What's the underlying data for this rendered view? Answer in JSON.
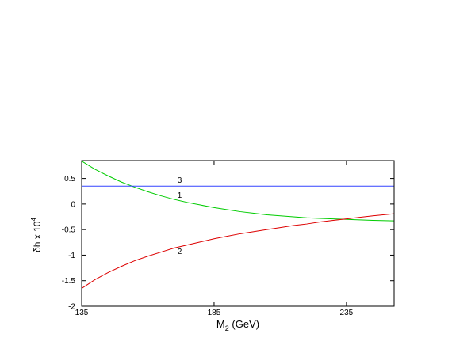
{
  "chart_data": {
    "type": "line",
    "title": "",
    "xlabel": {
      "main": "M",
      "sub": "2",
      "rest": " (GeV)"
    },
    "ylabel": {
      "main": "δh x 10",
      "sup": "4"
    },
    "xlim": [
      135,
      253
    ],
    "ylim": [
      -2,
      0.85
    ],
    "xticks": [
      135,
      185,
      235
    ],
    "yticks": [
      0.5,
      0,
      -0.5,
      -1,
      -1.5,
      -2
    ],
    "ytick_labels": [
      "0.5",
      "0",
      "-0.5",
      "-1",
      "-1.5",
      "-2"
    ],
    "grid": false,
    "series": [
      {
        "name": "1",
        "color": "#00cc00",
        "label_at": [
          172,
          0.12
        ],
        "x": [
          135,
          140,
          145,
          150,
          155,
          160,
          165,
          170,
          175,
          180,
          185,
          190,
          195,
          200,
          205,
          210,
          215,
          220,
          225,
          230,
          235,
          240,
          245,
          253
        ],
        "y": [
          0.84,
          0.68,
          0.55,
          0.43,
          0.33,
          0.24,
          0.16,
          0.09,
          0.03,
          -0.02,
          -0.07,
          -0.11,
          -0.15,
          -0.18,
          -0.21,
          -0.23,
          -0.25,
          -0.27,
          -0.28,
          -0.29,
          -0.3,
          -0.31,
          -0.32,
          -0.33
        ]
      },
      {
        "name": "2",
        "color": "#dd0000",
        "label_at": [
          172,
          -0.98
        ],
        "x": [
          135,
          140,
          145,
          150,
          155,
          160,
          165,
          170,
          175,
          180,
          185,
          190,
          195,
          200,
          205,
          210,
          215,
          220,
          225,
          230,
          235,
          240,
          245,
          253
        ],
        "y": [
          -1.65,
          -1.48,
          -1.34,
          -1.22,
          -1.11,
          -1.02,
          -0.94,
          -0.86,
          -0.8,
          -0.74,
          -0.68,
          -0.63,
          -0.58,
          -0.54,
          -0.5,
          -0.46,
          -0.42,
          -0.39,
          -0.35,
          -0.32,
          -0.29,
          -0.26,
          -0.23,
          -0.19
        ]
      },
      {
        "name": "3",
        "color": "#3344ff",
        "label_at": [
          172,
          0.42
        ],
        "x": [
          135,
          253
        ],
        "y": [
          0.35,
          0.35
        ]
      }
    ]
  }
}
